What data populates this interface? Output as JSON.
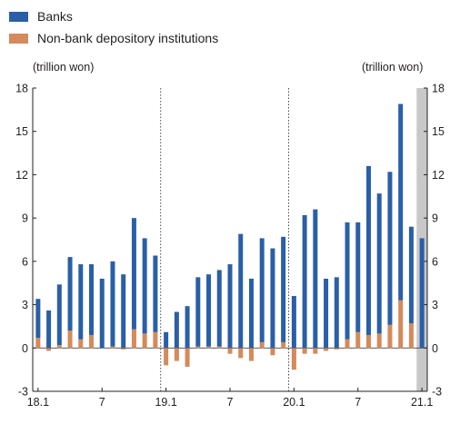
{
  "chart_data": {
    "type": "bar",
    "stacked": true,
    "unit_left": "(trillion won)",
    "unit_right": "(trillion won)",
    "ylim": [
      -3,
      18
    ],
    "yticks": [
      -3,
      0,
      3,
      6,
      9,
      12,
      15,
      18
    ],
    "xtick_labels": [
      {
        "index": 0,
        "label": "18.1"
      },
      {
        "index": 6,
        "label": "7"
      },
      {
        "index": 12,
        "label": "19.1"
      },
      {
        "index": 18,
        "label": "7"
      },
      {
        "index": 24,
        "label": "20.1"
      },
      {
        "index": 30,
        "label": "7"
      },
      {
        "index": 36,
        "label": "21.1"
      }
    ],
    "year_dividers_after_index": [
      11,
      23
    ],
    "shaded_index_range": [
      35.5,
      36.5
    ],
    "categories": [
      "18.1",
      "18.2",
      "18.3",
      "18.4",
      "18.5",
      "18.6",
      "18.7",
      "18.8",
      "18.9",
      "18.10",
      "18.11",
      "18.12",
      "19.1",
      "19.2",
      "19.3",
      "19.4",
      "19.5",
      "19.6",
      "19.7",
      "19.8",
      "19.9",
      "19.10",
      "19.11",
      "19.12",
      "20.1",
      "20.2",
      "20.3",
      "20.4",
      "20.5",
      "20.6",
      "20.7",
      "20.8",
      "20.9",
      "20.10",
      "20.11",
      "20.12",
      "21.1",
      "21.2"
    ],
    "series": [
      {
        "name": "Banks",
        "color": "#2a5fa8",
        "values": [
          2.7,
          2.6,
          4.2,
          5.1,
          5.2,
          4.9,
          4.8,
          5.9,
          5.1,
          7.7,
          6.6,
          5.3,
          1.1,
          2.5,
          2.9,
          4.8,
          5.0,
          5.3,
          5.8,
          7.9,
          4.8,
          7.2,
          6.9,
          7.3,
          3.6,
          9.2,
          9.6,
          4.8,
          4.9,
          8.1,
          7.6,
          11.7,
          9.7,
          10.6,
          13.6,
          6.7,
          7.6,
          0
        ]
      },
      {
        "name": "Non-bank depository institutions",
        "color": "#d48a5a",
        "values": [
          0.7,
          -0.2,
          0.2,
          1.2,
          0.6,
          0.9,
          0,
          0.1,
          -0.1,
          1.3,
          1.0,
          1.1,
          -1.2,
          -0.9,
          -1.3,
          0.1,
          0.1,
          0.1,
          -0.4,
          -0.7,
          -0.9,
          0.4,
          -0.5,
          0.4,
          -1.5,
          -0.4,
          -0.4,
          -0.2,
          -0.1,
          0.6,
          1.1,
          0.9,
          1.0,
          1.6,
          3.3,
          1.7,
          0,
          0
        ]
      }
    ]
  }
}
